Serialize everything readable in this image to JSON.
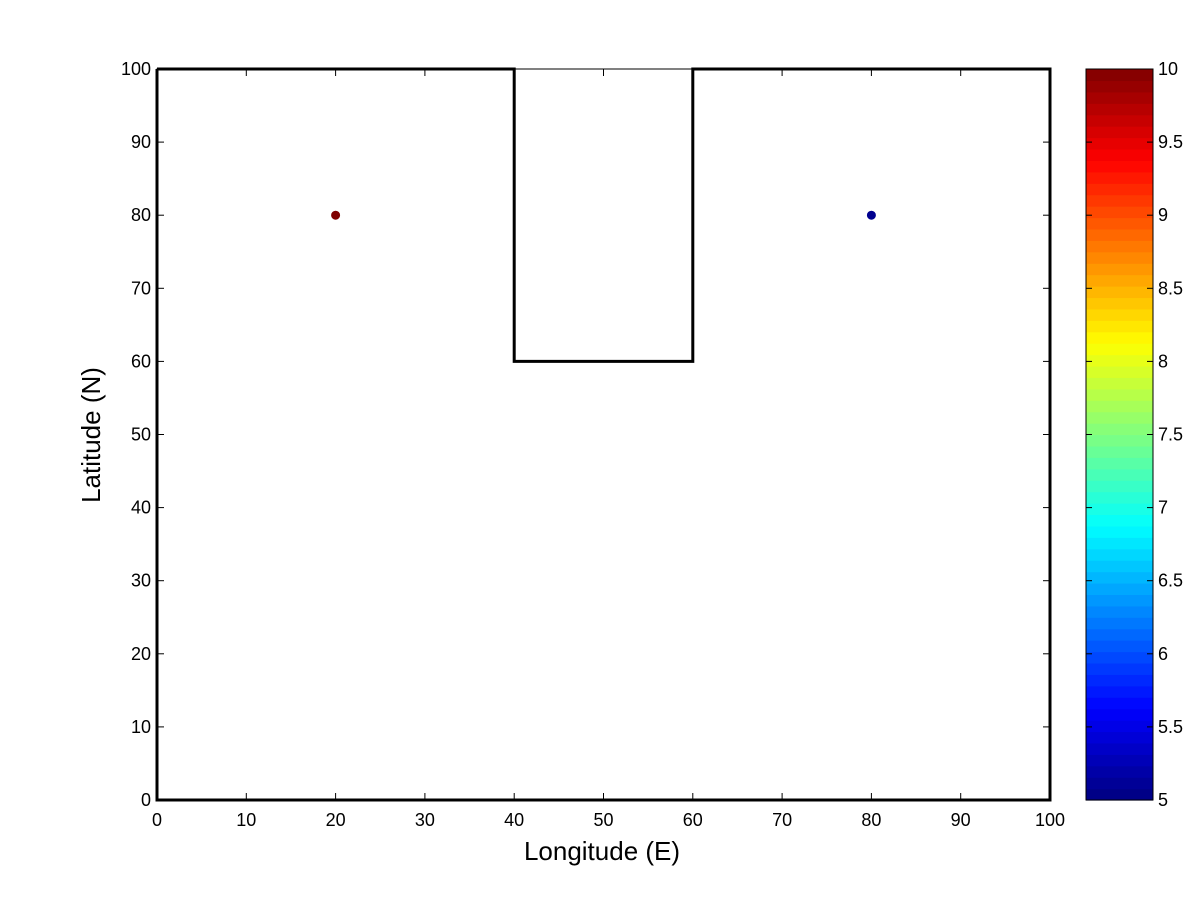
{
  "chart_data": {
    "type": "scatter",
    "xlabel": "Longitude (E)",
    "ylabel": "Latitude (N)",
    "xlim": [
      0,
      100
    ],
    "ylim": [
      0,
      100
    ],
    "xticks": [
      0,
      10,
      20,
      30,
      40,
      50,
      60,
      70,
      80,
      90,
      100
    ],
    "yticks": [
      0,
      10,
      20,
      30,
      40,
      50,
      60,
      70,
      80,
      90,
      100
    ],
    "grid": false,
    "boundary": {
      "x": [
        0,
        40,
        40,
        60,
        60,
        100,
        100,
        0,
        0
      ],
      "y": [
        100,
        100,
        60,
        60,
        100,
        100,
        0,
        0,
        100
      ]
    },
    "points": [
      {
        "x": 20,
        "y": 80,
        "value": 10,
        "color": "#800000"
      },
      {
        "x": 80,
        "y": 80,
        "value": 5,
        "color": "#00008f"
      }
    ],
    "colorbar": {
      "colormap": "jet",
      "clim": [
        5,
        10
      ],
      "ticks": [
        "5",
        "5.5",
        "6",
        "6.5",
        "7",
        "7.5",
        "8",
        "8.5",
        "9",
        "9.5",
        "10"
      ]
    }
  }
}
